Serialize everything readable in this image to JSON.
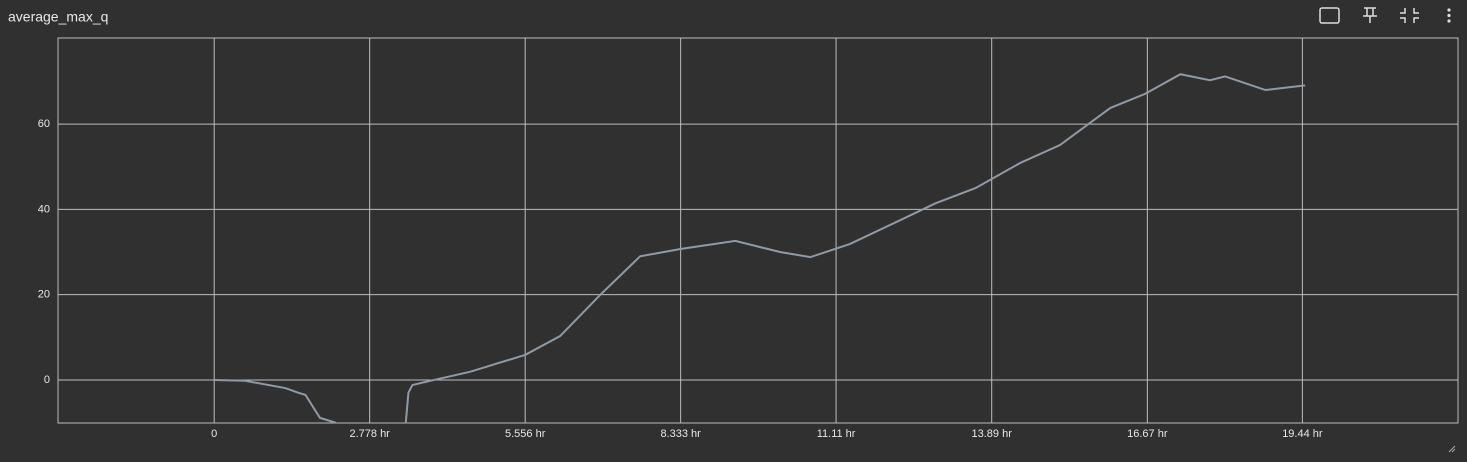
{
  "chart_data": {
    "type": "line",
    "title": "average_max_q",
    "x": [
      0,
      0.55,
      1.27,
      1.5,
      1.63,
      1.89,
      2.16,
      2.34,
      3.41,
      3.47,
      3.54,
      3.86,
      4.57,
      5.56,
      6.18,
      6.9,
      7.61,
      8.33,
      9.31,
      10.11,
      10.65,
      11.36,
      12.26,
      12.88,
      13.6,
      14.4,
      15.11,
      16.01,
      16.63,
      17.26,
      17.79,
      18.06,
      18.78,
      19.49
    ],
    "series": [
      {
        "color": "#8f9aa6",
        "values": [
          0,
          -0.2,
          -1.9,
          -3.0,
          -3.5,
          -8.9,
          -10.0,
          -12,
          -12,
          -3,
          -1.2,
          -0.2,
          1.9,
          5.9,
          10.3,
          20,
          29,
          30.7,
          32.6,
          30,
          28.8,
          31.9,
          37.5,
          41.4,
          45,
          50.9,
          55.1,
          63.8,
          67.1,
          71.7,
          70.3,
          71.2,
          68,
          69.1
        ]
      }
    ],
    "xlim": [
      -2.79,
      22.22
    ],
    "ylim": [
      -10.1,
      80.2
    ],
    "xticks": [
      {
        "value": 0,
        "label": "0"
      },
      {
        "value": 2.778,
        "label": "2.778 hr"
      },
      {
        "value": 5.556,
        "label": "5.556 hr"
      },
      {
        "value": 8.333,
        "label": "8.333 hr"
      },
      {
        "value": 11.11,
        "label": "11.11 hr"
      },
      {
        "value": 13.89,
        "label": "13.89 hr"
      },
      {
        "value": 16.67,
        "label": "16.67 hr"
      },
      {
        "value": 19.44,
        "label": "19.44 hr"
      }
    ],
    "yticks": [
      0,
      20,
      40,
      60
    ],
    "grid": true
  }
}
